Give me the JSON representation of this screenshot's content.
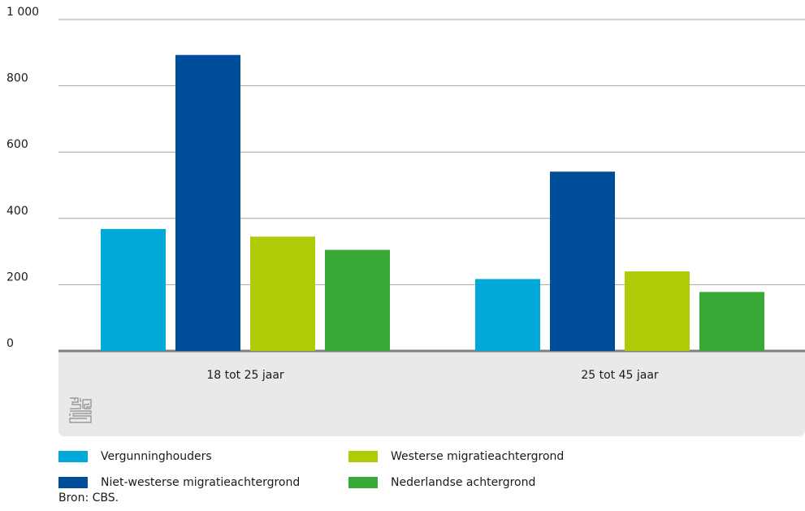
{
  "chart_data": {
    "type": "bar",
    "categories": [
      "18 tot 25 jaar",
      "25 tot 45 jaar"
    ],
    "series": [
      {
        "name": "Vergunninghouders",
        "color": "#00a9d8",
        "values": [
          368,
          217
        ]
      },
      {
        "name": "Niet-westerse migratieachtergrond",
        "color": "#004d99",
        "values": [
          893,
          541
        ]
      },
      {
        "name": "Westerse migratieachtergrond",
        "color": "#afcb05",
        "values": [
          345,
          240
        ]
      },
      {
        "name": "Nederlandse achtergrond",
        "color": "#39a935",
        "values": [
          305,
          178
        ]
      }
    ],
    "ylim": [
      0,
      1000
    ],
    "yticks": [
      0,
      200,
      400,
      600,
      800,
      1000
    ],
    "ytick_labels": [
      "0",
      "200",
      "400",
      "600",
      "800",
      "1 000"
    ],
    "grid": true,
    "legend_position": "bottom",
    "title": "",
    "xlabel": "",
    "ylabel": ""
  },
  "source": "Bron: CBS.",
  "logo_text": "cbs",
  "colors": {
    "grid": "#a6a6a6",
    "baseline": "#7f7f7f",
    "category_band": "#e9e9e9",
    "logo": "#9a9a9a"
  }
}
